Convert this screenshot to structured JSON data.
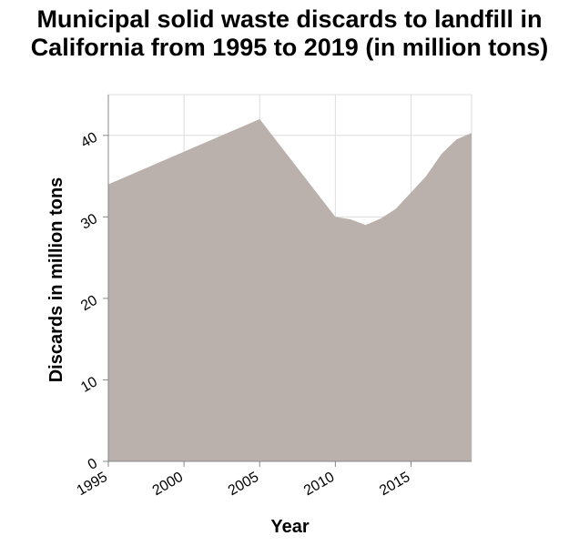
{
  "chart_data": {
    "type": "area",
    "title": "Municipal solid waste discards to landfill in California from 1995 to 2019 (in million tons)",
    "xlabel": "Year",
    "ylabel": "Discards in million tons",
    "xlim": [
      1995,
      2019
    ],
    "ylim": [
      0,
      45
    ],
    "x_ticks": [
      1995,
      2000,
      2005,
      2010,
      2015
    ],
    "y_ticks": [
      0,
      10,
      20,
      30,
      40
    ],
    "grid": true,
    "fill_color": "#bab0ac",
    "x": [
      1995,
      2005,
      2010,
      2011,
      2012,
      2013,
      2014,
      2015,
      2016,
      2017,
      2018,
      2019
    ],
    "values": [
      34.0,
      42.0,
      30.0,
      29.7,
      29.0,
      29.8,
      31.0,
      33.0,
      35.0,
      37.7,
      39.5,
      40.3
    ]
  }
}
